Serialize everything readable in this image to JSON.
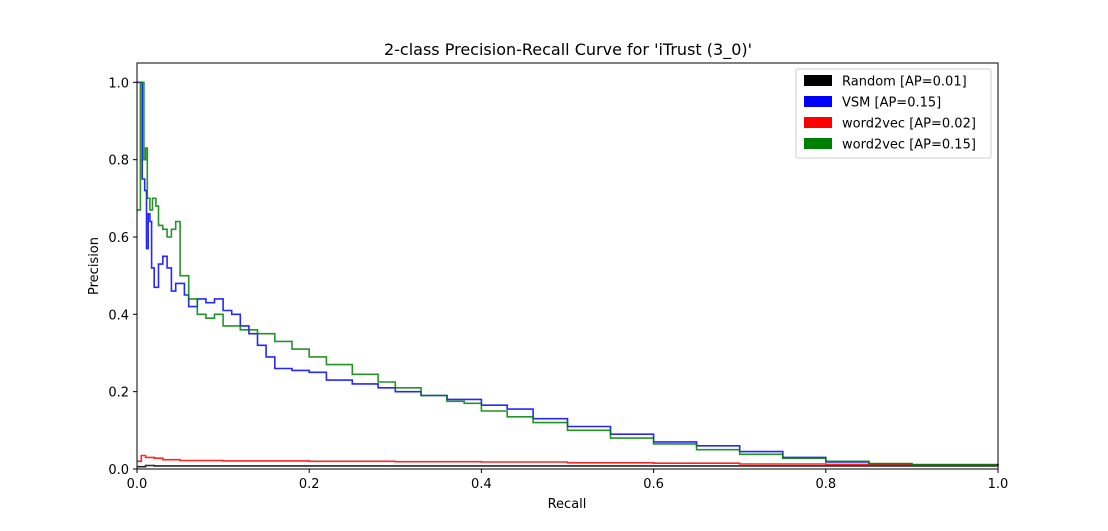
{
  "chart_data": {
    "type": "line",
    "title": "2-class Precision-Recall Curve for 'iTrust (3_0)'",
    "xlabel": "Recall",
    "ylabel": "Precision",
    "xlim": [
      0.0,
      1.0
    ],
    "ylim": [
      0.0,
      1.05
    ],
    "x_ticks": [
      "0.0",
      "0.2",
      "0.4",
      "0.6",
      "0.8",
      "1.0"
    ],
    "y_ticks": [
      "0.0",
      "0.2",
      "0.4",
      "0.6",
      "0.8",
      "1.0"
    ],
    "grid": false,
    "legend_position": "top-right",
    "series": [
      {
        "name": "Random [AP=0.01]",
        "color": "#000000",
        "points": [
          [
            0.0,
            0.006
          ],
          [
            0.01,
            0.009
          ],
          [
            0.02,
            0.008
          ],
          [
            0.05,
            0.008
          ],
          [
            0.1,
            0.008
          ],
          [
            0.2,
            0.008
          ],
          [
            0.3,
            0.008
          ],
          [
            0.4,
            0.008
          ],
          [
            0.5,
            0.008
          ],
          [
            0.6,
            0.008
          ],
          [
            0.7,
            0.008
          ],
          [
            0.8,
            0.008
          ],
          [
            0.9,
            0.008
          ],
          [
            1.0,
            0.008
          ]
        ]
      },
      {
        "name": "VSM [AP=0.15]",
        "color": "#0000ff",
        "points": [
          [
            0.0,
            1.0
          ],
          [
            0.006,
            1.0
          ],
          [
            0.006,
            0.75
          ],
          [
            0.009,
            0.72
          ],
          [
            0.011,
            0.57
          ],
          [
            0.013,
            0.66
          ],
          [
            0.015,
            0.64
          ],
          [
            0.017,
            0.52
          ],
          [
            0.02,
            0.47
          ],
          [
            0.025,
            0.53
          ],
          [
            0.03,
            0.55
          ],
          [
            0.035,
            0.52
          ],
          [
            0.04,
            0.46
          ],
          [
            0.045,
            0.48
          ],
          [
            0.05,
            0.48
          ],
          [
            0.055,
            0.45
          ],
          [
            0.06,
            0.42
          ],
          [
            0.07,
            0.44
          ],
          [
            0.08,
            0.43
          ],
          [
            0.09,
            0.44
          ],
          [
            0.1,
            0.41
          ],
          [
            0.11,
            0.4
          ],
          [
            0.12,
            0.37
          ],
          [
            0.13,
            0.35
          ],
          [
            0.14,
            0.32
          ],
          [
            0.15,
            0.29
          ],
          [
            0.16,
            0.26
          ],
          [
            0.18,
            0.255
          ],
          [
            0.2,
            0.25
          ],
          [
            0.22,
            0.23
          ],
          [
            0.25,
            0.22
          ],
          [
            0.28,
            0.21
          ],
          [
            0.3,
            0.2
          ],
          [
            0.33,
            0.19
          ],
          [
            0.36,
            0.18
          ],
          [
            0.4,
            0.165
          ],
          [
            0.43,
            0.155
          ],
          [
            0.46,
            0.13
          ],
          [
            0.5,
            0.11
          ],
          [
            0.55,
            0.09
          ],
          [
            0.6,
            0.07
          ],
          [
            0.65,
            0.06
          ],
          [
            0.7,
            0.045
          ],
          [
            0.75,
            0.03
          ],
          [
            0.8,
            0.018
          ],
          [
            0.85,
            0.013
          ],
          [
            0.9,
            0.011
          ],
          [
            1.0,
            0.008
          ]
        ]
      },
      {
        "name": "word2vec [AP=0.02]",
        "color": "#ff0000",
        "points": [
          [
            0.0,
            0.02
          ],
          [
            0.005,
            0.035
          ],
          [
            0.01,
            0.03
          ],
          [
            0.02,
            0.028
          ],
          [
            0.03,
            0.024
          ],
          [
            0.05,
            0.022
          ],
          [
            0.1,
            0.021
          ],
          [
            0.2,
            0.02
          ],
          [
            0.3,
            0.019
          ],
          [
            0.4,
            0.018
          ],
          [
            0.5,
            0.016
          ],
          [
            0.6,
            0.015
          ],
          [
            0.7,
            0.013
          ],
          [
            0.8,
            0.012
          ],
          [
            0.9,
            0.01
          ],
          [
            1.0,
            0.008
          ]
        ]
      },
      {
        "name": "word2vec [AP=0.15]",
        "color": "#008000",
        "points": [
          [
            0.0,
            0.67
          ],
          [
            0.004,
            1.0
          ],
          [
            0.008,
            0.8
          ],
          [
            0.01,
            0.83
          ],
          [
            0.012,
            0.7
          ],
          [
            0.015,
            0.67
          ],
          [
            0.018,
            0.7
          ],
          [
            0.022,
            0.68
          ],
          [
            0.025,
            0.63
          ],
          [
            0.03,
            0.62
          ],
          [
            0.035,
            0.6
          ],
          [
            0.04,
            0.62
          ],
          [
            0.045,
            0.64
          ],
          [
            0.05,
            0.5
          ],
          [
            0.06,
            0.44
          ],
          [
            0.07,
            0.4
          ],
          [
            0.08,
            0.39
          ],
          [
            0.09,
            0.4
          ],
          [
            0.1,
            0.37
          ],
          [
            0.12,
            0.36
          ],
          [
            0.14,
            0.35
          ],
          [
            0.16,
            0.33
          ],
          [
            0.18,
            0.31
          ],
          [
            0.2,
            0.29
          ],
          [
            0.22,
            0.27
          ],
          [
            0.25,
            0.245
          ],
          [
            0.28,
            0.225
          ],
          [
            0.3,
            0.21
          ],
          [
            0.33,
            0.19
          ],
          [
            0.36,
            0.175
          ],
          [
            0.38,
            0.17
          ],
          [
            0.4,
            0.15
          ],
          [
            0.43,
            0.135
          ],
          [
            0.46,
            0.12
          ],
          [
            0.5,
            0.1
          ],
          [
            0.55,
            0.08
          ],
          [
            0.6,
            0.065
          ],
          [
            0.65,
            0.05
          ],
          [
            0.7,
            0.038
          ],
          [
            0.75,
            0.028
          ],
          [
            0.8,
            0.02
          ],
          [
            0.85,
            0.014
          ],
          [
            0.9,
            0.011
          ],
          [
            1.0,
            0.008
          ]
        ]
      }
    ]
  }
}
